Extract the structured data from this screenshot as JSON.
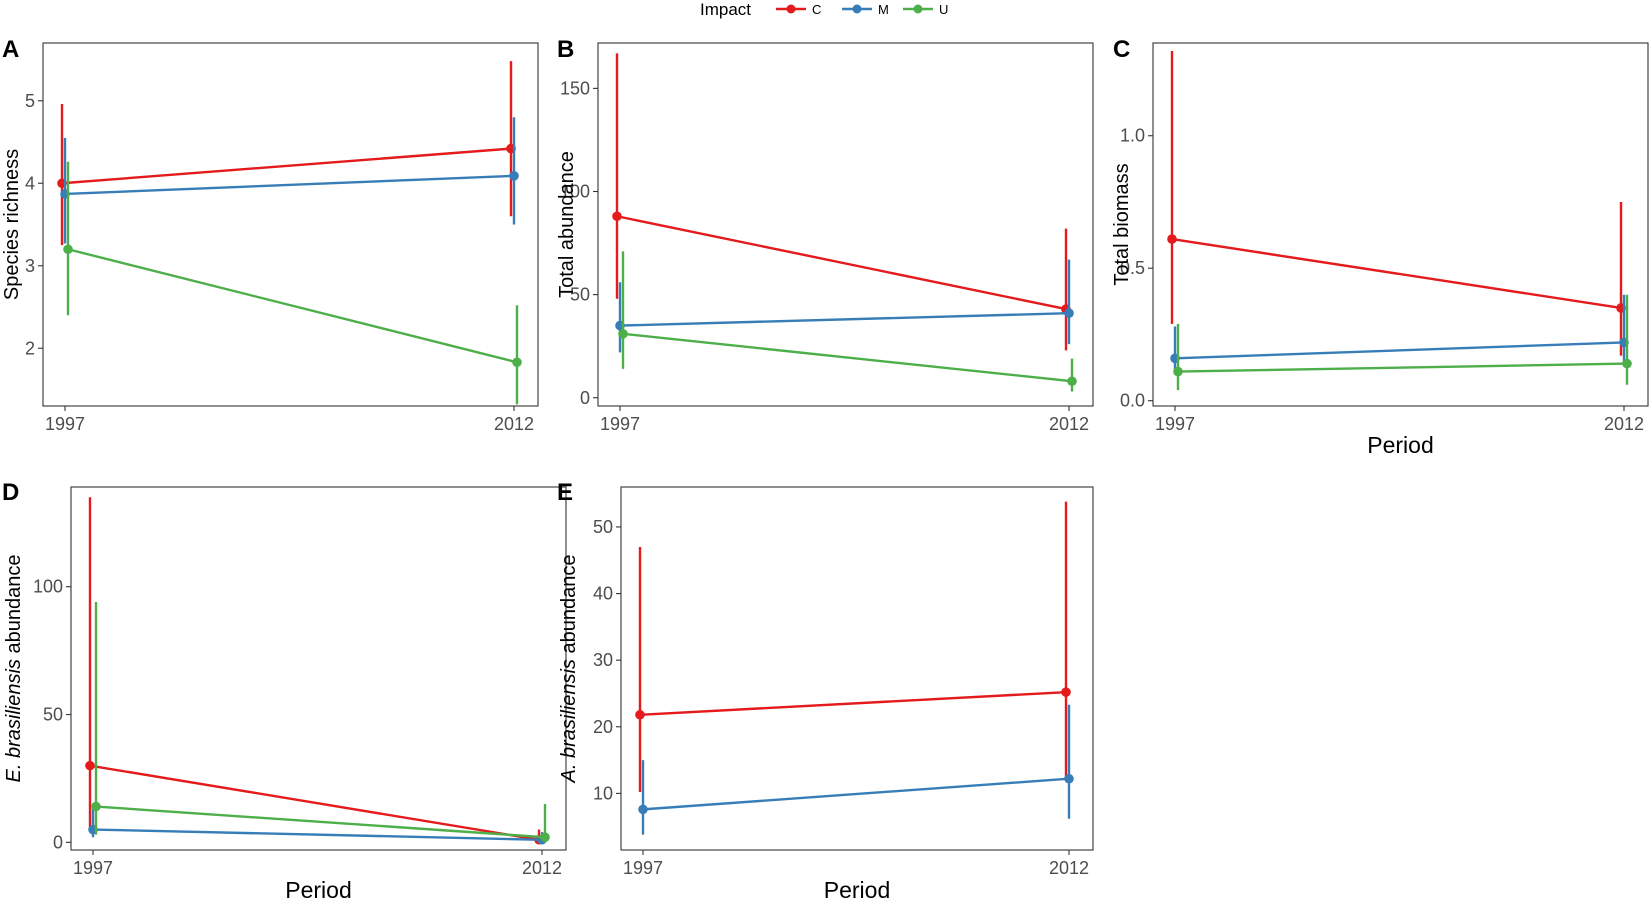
{
  "legend": {
    "title": "Impact",
    "items": [
      {
        "key": "C",
        "label": "C",
        "color": "#e41a1c"
      },
      {
        "key": "M",
        "label": "M",
        "color": "#377eb8"
      },
      {
        "key": "U",
        "label": "U",
        "color": "#4daf4a"
      }
    ]
  },
  "chart_data": [
    {
      "type": "line",
      "letter": "A",
      "xlabel": "",
      "ylabel": "Species richness",
      "ylabel_italic": "",
      "categories": [
        "1997",
        "2012"
      ],
      "ylim": [
        1.3,
        5.7
      ],
      "yticks": [
        2,
        3,
        4,
        5
      ],
      "series": [
        {
          "name": "C",
          "values": [
            4.0,
            4.42
          ],
          "lower": [
            3.25,
            3.6
          ],
          "upper": [
            4.96,
            5.48
          ]
        },
        {
          "name": "M",
          "values": [
            3.87,
            4.09
          ],
          "lower": [
            3.27,
            3.5
          ],
          "upper": [
            4.55,
            4.8
          ]
        },
        {
          "name": "U",
          "values": [
            3.2,
            1.83
          ],
          "lower": [
            2.4,
            1.32
          ],
          "upper": [
            4.26,
            2.52
          ]
        }
      ]
    },
    {
      "type": "line",
      "letter": "B",
      "xlabel": "",
      "ylabel": "Total abundance",
      "ylabel_italic": "",
      "categories": [
        "1997",
        "2012"
      ],
      "ylim": [
        -4,
        172
      ],
      "yticks": [
        0,
        50,
        100,
        150
      ],
      "series": [
        {
          "name": "C",
          "values": [
            88,
            43
          ],
          "lower": [
            48,
            23
          ],
          "upper": [
            167,
            82
          ]
        },
        {
          "name": "M",
          "values": [
            35,
            41
          ],
          "lower": [
            22,
            26
          ],
          "upper": [
            56,
            67
          ]
        },
        {
          "name": "U",
          "values": [
            31,
            8
          ],
          "lower": [
            14,
            3
          ],
          "upper": [
            71,
            19
          ]
        }
      ]
    },
    {
      "type": "line",
      "letter": "C",
      "xlabel": "Period",
      "ylabel": "Total biomass",
      "ylabel_italic": "",
      "categories": [
        "1997",
        "2012"
      ],
      "ylim": [
        -0.02,
        1.35
      ],
      "yticks": [
        0.0,
        0.5,
        1.0
      ],
      "ytick_labels": [
        "0.0",
        "0.5",
        "1.0"
      ],
      "series": [
        {
          "name": "C",
          "values": [
            0.61,
            0.35
          ],
          "lower": [
            0.29,
            0.17
          ],
          "upper": [
            1.32,
            0.75
          ]
        },
        {
          "name": "M",
          "values": [
            0.16,
            0.22
          ],
          "lower": [
            0.1,
            0.14
          ],
          "upper": [
            0.28,
            0.4
          ]
        },
        {
          "name": "U",
          "values": [
            0.11,
            0.14
          ],
          "lower": [
            0.04,
            0.06
          ],
          "upper": [
            0.29,
            0.4
          ]
        }
      ]
    },
    {
      "type": "line",
      "letter": "D",
      "xlabel": "Period",
      "ylabel": " abundance",
      "ylabel_italic": "E. brasiliensis",
      "categories": [
        "1997",
        "2012"
      ],
      "ylim": [
        -3,
        139
      ],
      "yticks": [
        0,
        50,
        100
      ],
      "series": [
        {
          "name": "C",
          "values": [
            30,
            1
          ],
          "lower": [
            5,
            0
          ],
          "upper": [
            135,
            5
          ]
        },
        {
          "name": "M",
          "values": [
            5,
            1
          ],
          "lower": [
            2,
            0
          ],
          "upper": [
            15,
            4
          ]
        },
        {
          "name": "U",
          "values": [
            14,
            2
          ],
          "lower": [
            3,
            0
          ],
          "upper": [
            94,
            15
          ]
        }
      ]
    },
    {
      "type": "line",
      "letter": "E",
      "xlabel": "Period",
      "ylabel": " abundance",
      "ylabel_italic": "A. brasiliensis",
      "categories": [
        "1997",
        "2012"
      ],
      "ylim": [
        1.5,
        56
      ],
      "yticks": [
        10,
        20,
        30,
        40,
        50
      ],
      "series": [
        {
          "name": "C",
          "values": [
            21.8,
            25.2
          ],
          "lower": [
            10.2,
            12
          ],
          "upper": [
            47,
            53.8
          ]
        },
        {
          "name": "M",
          "values": [
            7.6,
            12.2
          ],
          "lower": [
            3.8,
            6.2
          ],
          "upper": [
            15,
            23.3
          ]
        }
      ]
    }
  ]
}
